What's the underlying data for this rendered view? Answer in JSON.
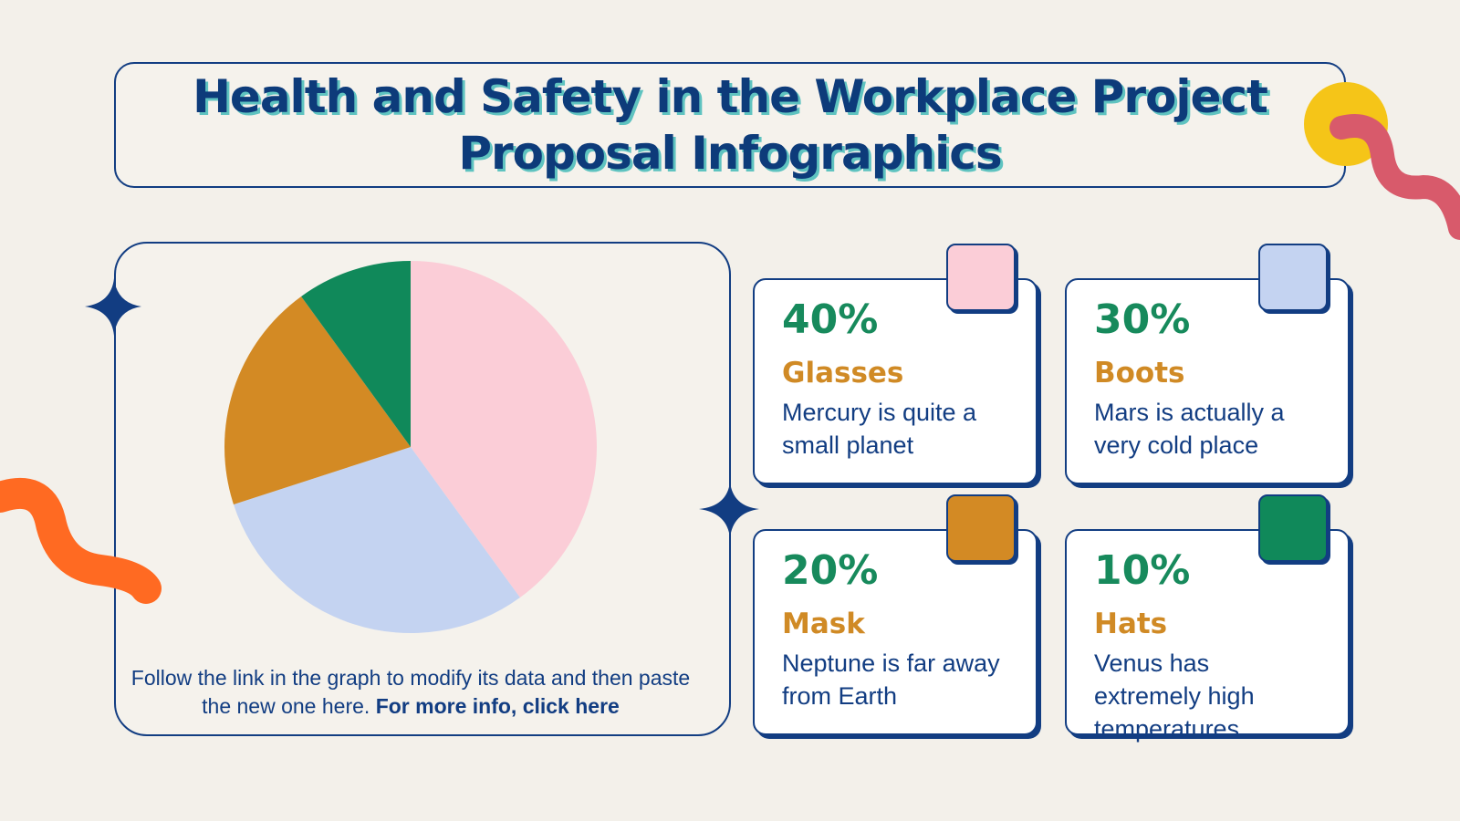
{
  "title": "Health and Safety in the Workplace Project Proposal Infographics",
  "chart_data": {
    "type": "pie",
    "categories": [
      "Glasses",
      "Boots",
      "Mask",
      "Hats"
    ],
    "values": [
      40,
      30,
      20,
      10
    ],
    "value_labels": [
      "40%",
      "30%",
      "20%",
      "10%"
    ],
    "colors": [
      "#fbcdd7",
      "#c4d3f1",
      "#d38a24",
      "#10895a"
    ]
  },
  "cards": [
    "Mercury is quite a small planet",
    "Mars is actually a very cold place",
    "Neptune is far away from Earth",
    "Venus has extremely high temperatures"
  ],
  "footer": {
    "text": "Follow the link in the graph to modify its data and then paste the new one here.",
    "link": "For more info, click here"
  }
}
